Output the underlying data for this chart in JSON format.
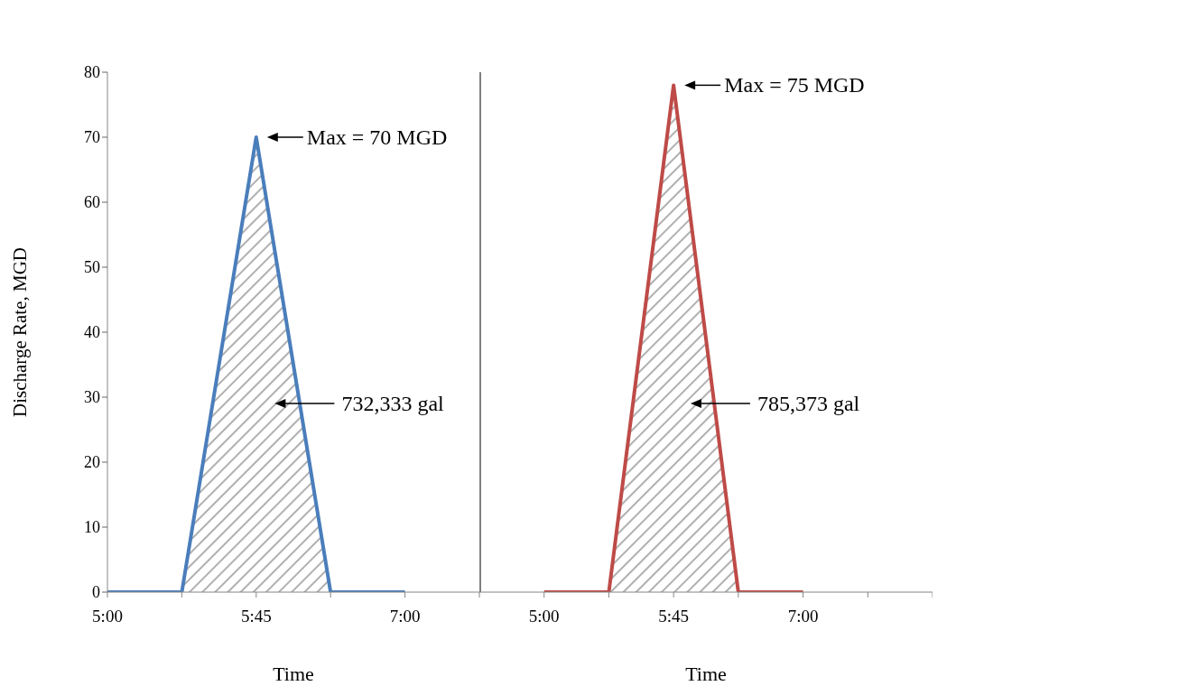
{
  "chart_data": [
    {
      "type": "area",
      "xlabel": "Time",
      "ylabel": "Discharge Rate, MGD",
      "categories": [
        "5:00",
        null,
        "5:45",
        null,
        "7:00",
        null
      ],
      "series": [
        {
          "color": "#4a7ebb",
          "values": [
            0,
            0,
            70,
            0,
            0,
            null
          ]
        }
      ],
      "ylim": [
        0,
        80
      ],
      "yticks": [
        0,
        10,
        20,
        30,
        40,
        50,
        60,
        70,
        80
      ],
      "annotations": [
        {
          "text": "Max = 70 MGD",
          "x": "5:45",
          "y": 70
        },
        "732,333 gal"
      ]
    },
    {
      "type": "area",
      "xlabel": "Time",
      "categories": [
        null,
        "5:00",
        null,
        "5:45",
        null,
        "7:00",
        null,
        null
      ],
      "series": [
        {
          "color": "#be4b48",
          "values": [
            null,
            0,
            0,
            78,
            0,
            0,
            null,
            null
          ]
        }
      ],
      "ylim": [
        0,
        80
      ],
      "tick_labels": "x",
      "annotations": [
        {
          "text": "Max = 75 MGD",
          "x": "5:45",
          "y": 78
        },
        "785,373 gal"
      ]
    }
  ]
}
